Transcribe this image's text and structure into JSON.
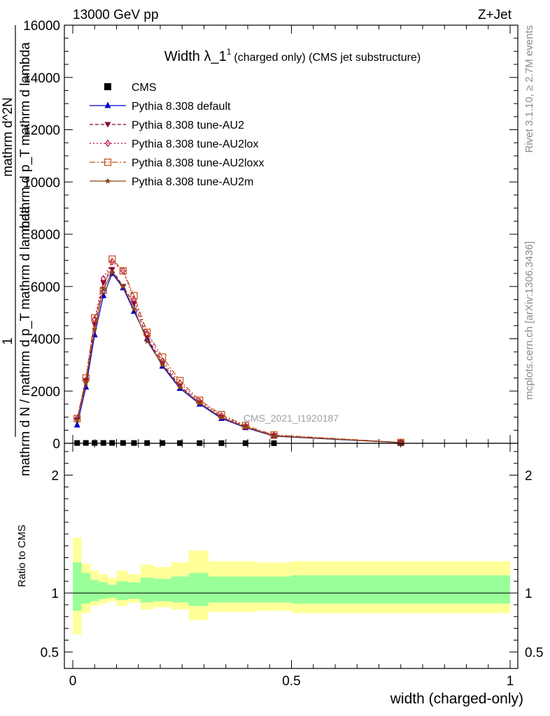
{
  "header": {
    "left_label": "13000 GeV pp",
    "right_label": "Z+Jet"
  },
  "side_labels": {
    "rivet": "Rivet 3.1.10, ≥ 2.7M events",
    "mcplots": "mcplots.cern.ch [arXiv:1306.3436]"
  },
  "watermark": "CMS_2021_I1920187",
  "chart_data": [
    {
      "type": "line",
      "title_main": "Width λ_1",
      "title_sup": "1",
      "title_suffix": "(charged only) (CMS jet substructure)",
      "ylabel_lines": [
        "1",
        "mathrm d N / mathrm d p_T mathrm d lambda",
        "mathrm d^2N",
        "mathrm d p_T mathrm d lambda"
      ],
      "xlabel": "width (charged-only)",
      "xlim": [
        0,
        1
      ],
      "ylim": [
        0,
        16000
      ],
      "yticks": [
        0,
        2000,
        4000,
        6000,
        8000,
        10000,
        12000,
        14000,
        16000
      ],
      "ytick_labels": [
        "0",
        "2000",
        "4000",
        "6000",
        "8000",
        "10000",
        "12000",
        "14000",
        "16000"
      ],
      "x": [
        0.01,
        0.03,
        0.05,
        0.07,
        0.09,
        0.115,
        0.14,
        0.17,
        0.205,
        0.245,
        0.29,
        0.34,
        0.395,
        0.46,
        0.75
      ],
      "legend_position": "top-left",
      "series": [
        {
          "name": "CMS",
          "color": "#000000",
          "marker": "square",
          "values": [
            12,
            14,
            14,
            14,
            14,
            13,
            12,
            11,
            10,
            9,
            8,
            7,
            6,
            5,
            1
          ]
        },
        {
          "name": "Pythia 8.308 default",
          "color": "#0000cc",
          "marker": "triangle-up",
          "dash": "",
          "values": [
            700,
            2150,
            4150,
            5650,
            6500,
            5950,
            5050,
            4000,
            2950,
            2100,
            1500,
            950,
            600,
            270,
            25
          ]
        },
        {
          "name": "Pythia 8.308 tune-AU2",
          "color": "#8b0038",
          "marker": "triangle-down",
          "dash": "5,3",
          "values": [
            900,
            2400,
            4550,
            6150,
            6650,
            6000,
            5350,
            4050,
            3050,
            2200,
            1550,
            1000,
            630,
            290,
            30
          ]
        },
        {
          "name": "Pythia 8.308 tune-AU2lox",
          "color": "#b8003c",
          "marker": "diamond",
          "dash": "2,3",
          "values": [
            950,
            2400,
            4750,
            6300,
            6950,
            6600,
            5500,
            4200,
            3150,
            2300,
            1600,
            1050,
            650,
            300,
            30
          ]
        },
        {
          "name": "Pythia 8.308 tune-AU2loxx",
          "color": "#c04a10",
          "marker": "square-open",
          "dash": "8,3,2,3",
          "values": [
            950,
            2500,
            4800,
            5850,
            7050,
            6600,
            5650,
            4250,
            3300,
            2400,
            1650,
            1100,
            680,
            320,
            35
          ]
        },
        {
          "name": "Pythia 8.308 tune-AU2m",
          "color": "#8b4513",
          "marker": "star",
          "dash": "",
          "values": [
            880,
            2300,
            4350,
            5900,
            6550,
            6000,
            5150,
            3900,
            3000,
            2150,
            1550,
            980,
            620,
            280,
            28
          ]
        }
      ]
    },
    {
      "type": "area",
      "ylabel": "Ratio to CMS",
      "xlim": [
        0,
        1
      ],
      "ylim": [
        0.36,
        2.27
      ],
      "yticks": [
        0.5,
        1,
        2
      ],
      "ytick_labels": [
        "0.5",
        "1",
        "2"
      ],
      "xticks": [
        0,
        0.5,
        1
      ],
      "xtick_labels": [
        "0",
        "0.5",
        "1"
      ],
      "band_edges": [
        0,
        0.02,
        0.04,
        0.06,
        0.08,
        0.1,
        0.125,
        0.155,
        0.185,
        0.225,
        0.265,
        0.31,
        0.36,
        0.42,
        0.5,
        1.0
      ],
      "outer_band": {
        "color": "#ffff99",
        "low": [
          0.65,
          0.83,
          0.89,
          0.91,
          0.93,
          0.89,
          0.92,
          0.86,
          0.88,
          0.86,
          0.77,
          0.84,
          0.84,
          0.85,
          0.83
        ],
        "high": [
          1.47,
          1.25,
          1.19,
          1.16,
          1.13,
          1.19,
          1.16,
          1.24,
          1.22,
          1.26,
          1.36,
          1.27,
          1.27,
          1.26,
          1.27
        ]
      },
      "inner_band": {
        "color": "#99ff99",
        "low": [
          0.85,
          0.91,
          0.93,
          0.95,
          0.96,
          0.94,
          0.95,
          0.92,
          0.93,
          0.92,
          0.89,
          0.92,
          0.92,
          0.92,
          0.91
        ],
        "high": [
          1.26,
          1.17,
          1.11,
          1.09,
          1.07,
          1.1,
          1.09,
          1.13,
          1.12,
          1.14,
          1.17,
          1.14,
          1.14,
          1.14,
          1.15
        ]
      },
      "reference_line": 1
    }
  ]
}
